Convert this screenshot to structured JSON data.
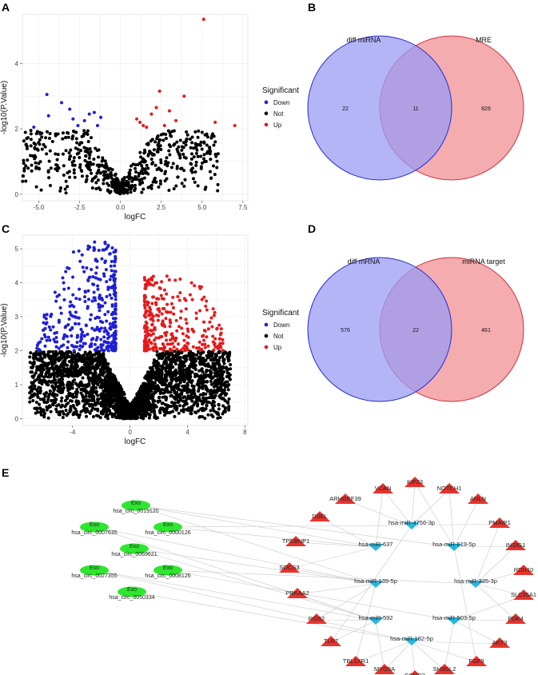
{
  "panels": {
    "A": "A",
    "B": "B",
    "C": "C",
    "D": "D",
    "E": "E"
  },
  "colors": {
    "down": "#1f1fd6",
    "not": "#000000",
    "up": "#e41a1c",
    "venn_left": "#9a9cf4",
    "venn_right": "#f3a3a6",
    "venn_left_stroke": "#2a2ad0",
    "venn_right_stroke": "#d0303a",
    "exo": "#2ee62e",
    "mirna": "#29b6e0",
    "gene": "#e8322c",
    "edge": "#c8c8c8"
  },
  "chart_data": [
    {
      "type": "scatter",
      "panel": "A",
      "xlabel": "logFC",
      "ylabel": "-log10(P.Value)",
      "xlim": [
        -6,
        7.8
      ],
      "ylim": [
        -0.2,
        5.5
      ],
      "xticks": [
        "-5.0",
        "-2.5",
        "0.0",
        "2.5",
        "5.0",
        "7.5"
      ],
      "xtick_values": [
        -5,
        -2.5,
        0,
        2.5,
        5,
        7.5
      ],
      "yticks": [
        "0",
        "2",
        "4"
      ],
      "ytick_values": [
        0,
        2,
        4
      ],
      "grid": true,
      "legend": {
        "title": "Significant",
        "placement": "right",
        "entries": [
          "Down",
          "Not",
          "Up"
        ]
      },
      "series": [
        {
          "name": "Down",
          "points": [
            [
              -5.3,
              2.05
            ],
            [
              -4.5,
              3.05
            ],
            [
              -4.4,
              2.4
            ],
            [
              -3.6,
              2.8
            ],
            [
              -3.1,
              2.6
            ],
            [
              -2.9,
              2.3
            ],
            [
              -2.6,
              2.1
            ],
            [
              -1.9,
              2.45
            ],
            [
              -1.6,
              2.5
            ],
            [
              -1.4,
              2.1
            ],
            [
              -1.2,
              2.35
            ],
            [
              -2.2,
              2.25
            ]
          ]
        },
        {
          "name": "Up",
          "points": [
            [
              5.1,
              5.35
            ],
            [
              7.0,
              2.1
            ],
            [
              5.8,
              2.2
            ],
            [
              3.9,
              3.0
            ],
            [
              3.0,
              2.55
            ],
            [
              2.4,
              3.15
            ],
            [
              2.2,
              2.65
            ],
            [
              1.9,
              2.45
            ],
            [
              1.2,
              2.2
            ],
            [
              1.0,
              2.3
            ],
            [
              1.6,
              2.05
            ],
            [
              3.4,
              2.25
            ],
            [
              2.7,
              2.1
            ],
            [
              1.4,
              2.1
            ]
          ]
        },
        {
          "name": "Not",
          "cloud": {
            "n": 650,
            "xmax": 6.0,
            "ymax": 1.95,
            "seed": 11
          }
        }
      ]
    },
    {
      "type": "venn",
      "panel": "B",
      "sets": [
        {
          "label": "diff miRNA",
          "only": "22"
        },
        {
          "label": "MRE",
          "only": "826"
        }
      ],
      "intersection": "11"
    },
    {
      "type": "scatter",
      "panel": "C",
      "xlabel": "logFC",
      "ylabel": "-log10(P.Value)",
      "xlim": [
        -7.5,
        8.2
      ],
      "ylim": [
        -0.2,
        5.4
      ],
      "xticks": [
        "-4",
        "0",
        "4",
        "8"
      ],
      "xtick_values": [
        -4,
        0,
        4,
        8
      ],
      "yticks": [
        "0",
        "1",
        "2",
        "3",
        "4",
        "5"
      ],
      "ytick_values": [
        0,
        1,
        2,
        3,
        4,
        5
      ],
      "grid": true,
      "legend": {
        "title": "Significant",
        "placement": "right",
        "entries": [
          "Down",
          "Not",
          "Up"
        ]
      },
      "series": [
        {
          "name": "Down",
          "cloud": {
            "n": 360,
            "side": -1,
            "xmin": 1.0,
            "xmax": 6.5,
            "ymin": 2.0,
            "ymax": 5.2,
            "seed": 21
          }
        },
        {
          "name": "Up",
          "cloud": {
            "n": 300,
            "side": 1,
            "xmin": 1.0,
            "xmax": 6.5,
            "ymin": 2.0,
            "ymax": 4.2,
            "seed": 31
          }
        },
        {
          "name": "Not",
          "cloud": {
            "n": 3200,
            "xmax": 7.0,
            "ymax": 1.98,
            "seed": 41
          }
        }
      ]
    },
    {
      "type": "venn",
      "panel": "D",
      "sets": [
        {
          "label": "diff mRNA",
          "only": "576"
        },
        {
          "label": "miRNA target",
          "only": "461"
        }
      ],
      "intersection": "22"
    },
    {
      "type": "network",
      "panel": "E",
      "circrnas": [
        {
          "id": "c1",
          "tag": "Exo",
          "name": "hsa_circ_0019120"
        },
        {
          "id": "c2",
          "tag": "Exo",
          "name": "hsa_circ_0007635"
        },
        {
          "id": "c3",
          "tag": "Exo",
          "name": "hsa_circ_0000126"
        },
        {
          "id": "c4",
          "tag": "Exo",
          "name": "hsa_circ_0069621"
        },
        {
          "id": "c5",
          "tag": "Exo",
          "name": "hsa_circ_0027355"
        },
        {
          "id": "c6",
          "tag": "Exo",
          "name": "hsa_circ_0008126"
        },
        {
          "id": "c7",
          "tag": "Exo",
          "name": "hsa_circ_0050334"
        }
      ],
      "mirnas": [
        {
          "id": "m1",
          "name": "hsa-miR-4756-3p"
        },
        {
          "id": "m2",
          "name": "hsa-miR-637"
        },
        {
          "id": "m3",
          "name": "hsa-miR-619-5p"
        },
        {
          "id": "m4",
          "name": "hsa-miR-139-5p"
        },
        {
          "id": "m5",
          "name": "hsa-miR-335-3p"
        },
        {
          "id": "m6",
          "name": "hsa-miR-592"
        },
        {
          "id": "m7",
          "name": "hsa-miR-503-5p"
        },
        {
          "id": "m8",
          "name": "hsa-miR-182-5p"
        }
      ],
      "genes": [
        {
          "id": "g1",
          "name": "KIF23"
        },
        {
          "id": "g2",
          "name": "VCAN"
        },
        {
          "id": "g3",
          "name": "NOTCH1"
        },
        {
          "id": "g4",
          "name": "ARHGEF39"
        },
        {
          "id": "g5",
          "name": "ANLN"
        },
        {
          "id": "g6",
          "name": "DSEL"
        },
        {
          "id": "g7",
          "name": "PMAIP1"
        },
        {
          "id": "g8",
          "name": "TP53INP1"
        },
        {
          "id": "g9",
          "name": "INSIG1"
        },
        {
          "id": "g10",
          "name": "SOCS3"
        },
        {
          "id": "g11",
          "name": "RDH10"
        },
        {
          "id": "g12",
          "name": "PRKAA2"
        },
        {
          "id": "g13",
          "name": "SLC35A1"
        },
        {
          "id": "g14",
          "name": "RGS2"
        },
        {
          "id": "g15",
          "name": "PDK4"
        },
        {
          "id": "g16",
          "name": "TLR7"
        },
        {
          "id": "g17",
          "name": "AKT3"
        },
        {
          "id": "g18",
          "name": "TBL1XR1"
        },
        {
          "id": "g19",
          "name": "FGF9"
        },
        {
          "id": "g20",
          "name": "MYO5A"
        },
        {
          "id": "g21",
          "name": "SH3GL2"
        },
        {
          "id": "g22",
          "name": "CCND2"
        }
      ],
      "edges": [
        [
          "c1",
          "m2"
        ],
        [
          "c1",
          "m4"
        ],
        [
          "c1",
          "m3"
        ],
        [
          "c2",
          "m4"
        ],
        [
          "c2",
          "m6"
        ],
        [
          "c3",
          "m2"
        ],
        [
          "c3",
          "m1"
        ],
        [
          "c4",
          "m6"
        ],
        [
          "c4",
          "m4"
        ],
        [
          "c5",
          "m8"
        ],
        [
          "c5",
          "m6"
        ],
        [
          "c6",
          "m5"
        ],
        [
          "c6",
          "m7"
        ],
        [
          "c7",
          "m8"
        ],
        [
          "m1",
          "g2"
        ],
        [
          "m1",
          "g1"
        ],
        [
          "m1",
          "g3"
        ],
        [
          "m1",
          "g4"
        ],
        [
          "m1",
          "g7"
        ],
        [
          "m1",
          "g16"
        ],
        [
          "m2",
          "g8"
        ],
        [
          "m2",
          "g6"
        ],
        [
          "m2",
          "g10"
        ],
        [
          "m2",
          "g2"
        ],
        [
          "m3",
          "g5"
        ],
        [
          "m3",
          "g9"
        ],
        [
          "m3",
          "g3"
        ],
        [
          "m3",
          "g1"
        ],
        [
          "m3",
          "g19"
        ],
        [
          "m4",
          "g10"
        ],
        [
          "m4",
          "g12"
        ],
        [
          "m4",
          "g14"
        ],
        [
          "m4",
          "g18"
        ],
        [
          "m5",
          "g11"
        ],
        [
          "m5",
          "g13"
        ],
        [
          "m5",
          "g9"
        ],
        [
          "m5",
          "g7"
        ],
        [
          "m5",
          "g15"
        ],
        [
          "m6",
          "g12"
        ],
        [
          "m6",
          "g14"
        ],
        [
          "m6",
          "g20"
        ],
        [
          "m6",
          "g16"
        ],
        [
          "m7",
          "g15"
        ],
        [
          "m7",
          "g17"
        ],
        [
          "m7",
          "g21"
        ],
        [
          "m7",
          "g13"
        ],
        [
          "m8",
          "g20"
        ],
        [
          "m8",
          "g22"
        ],
        [
          "m8",
          "g21"
        ],
        [
          "m8",
          "g19"
        ],
        [
          "m8",
          "g17"
        ],
        [
          "m8",
          "g18"
        ]
      ]
    }
  ]
}
